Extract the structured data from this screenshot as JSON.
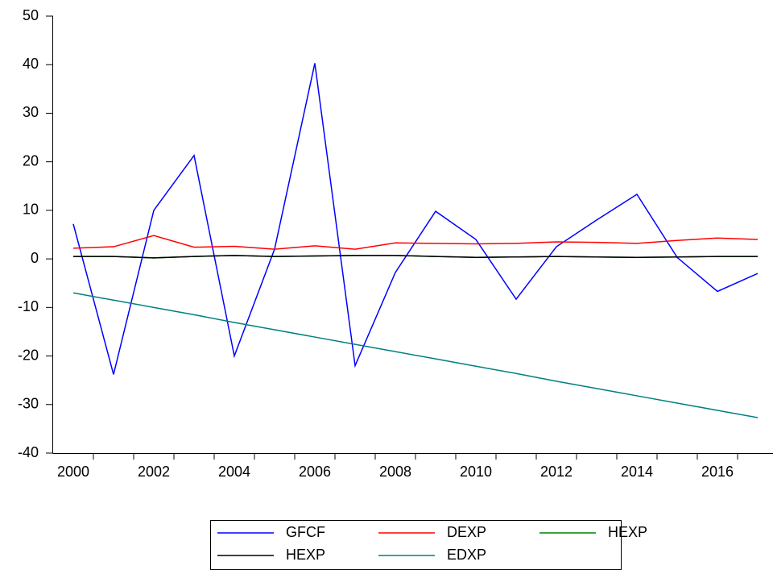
{
  "chart_data": {
    "type": "line",
    "categories": [
      "2000",
      null,
      "2002",
      null,
      "2004",
      null,
      "2006",
      null,
      "2008",
      null,
      "2010",
      null,
      "2012",
      null,
      "2014",
      null,
      "2016",
      null
    ],
    "series": [
      {
        "name": "GFCF",
        "color": "#0000ff",
        "values": [
          7.2,
          -23.8,
          10,
          21.3,
          -20,
          2,
          40.3,
          -22,
          -2.8,
          9.8,
          4,
          -8.3,
          2.5,
          8,
          13.3,
          0.3,
          -6.7,
          -3
        ]
      },
      {
        "name": "DEXP",
        "color": "#ff0000",
        "values": [
          2.2,
          2.5,
          4.8,
          2.4,
          2.6,
          2,
          2.7,
          2,
          3.3,
          3.2,
          3.1,
          3.2,
          3.5,
          3.4,
          3.2,
          3.8,
          4.3,
          4
        ]
      },
      {
        "name": "HEXP",
        "color": "#008000",
        "values": [
          0.5,
          0.5,
          0.2,
          0.5,
          0.7,
          0.5,
          0.6,
          0.7,
          0.7,
          0.5,
          0.3,
          0.4,
          0.5,
          0.4,
          0.3,
          0.4,
          0.5,
          0.5
        ]
      },
      {
        "name": "HEXP",
        "color": "#000000",
        "values": [
          0.5,
          0.5,
          0.2,
          0.5,
          0.7,
          0.5,
          0.6,
          0.7,
          0.7,
          0.5,
          0.3,
          0.4,
          0.5,
          0.4,
          0.3,
          0.4,
          0.5,
          0.5
        ]
      },
      {
        "name": "EDXP",
        "color": "#008080",
        "values": [
          -7,
          -8.5,
          -10,
          -11.5,
          -13.1,
          -14.6,
          -16.1,
          -17.6,
          -19.1,
          -20.6,
          -22.1,
          -23.6,
          -25.2,
          -26.7,
          -28.2,
          -29.7,
          -31.2,
          -32.7
        ]
      }
    ],
    "ylim": [
      -40,
      50
    ],
    "yticks": [
      -40,
      -30,
      -20,
      -10,
      0,
      10,
      20,
      30,
      40,
      50
    ]
  }
}
